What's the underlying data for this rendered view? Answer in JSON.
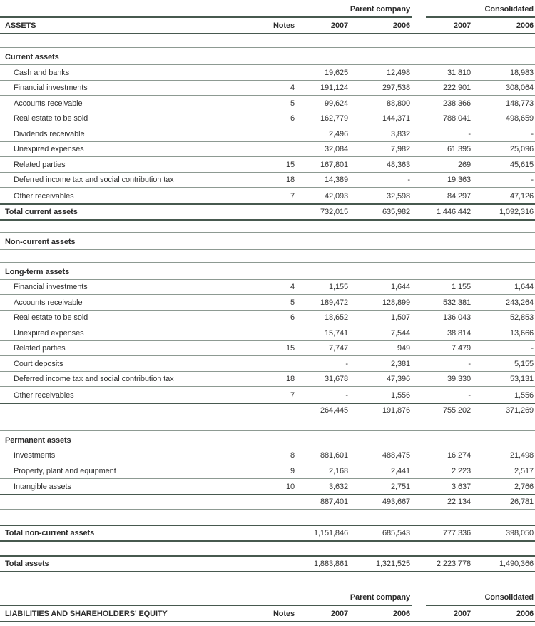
{
  "document": {
    "kind": "balance-sheet",
    "colors": {
      "rule_dark": "#47594f",
      "rule_light": "#8d9a92",
      "text": "#323232"
    }
  },
  "table": {
    "group_headers": {
      "parent": "Parent company",
      "consolidated": "Consolidated"
    },
    "column_headers": {
      "assets": "ASSETS",
      "liabilities": "LIABILITIES AND SHAREHOLDERS' EQUITY",
      "notes": "Notes",
      "y2007": "2007",
      "y2006": "2006"
    },
    "rows": [
      {
        "type": "groups"
      },
      {
        "type": "cols",
        "label_key": "assets"
      },
      {
        "type": "spacer",
        "h": 18
      },
      {
        "type": "section",
        "label": "Current assets"
      },
      {
        "type": "item",
        "label": "Cash and banks",
        "note": "",
        "p2007": "19,625",
        "p2006": "12,498",
        "c2007": "31,810",
        "c2006": "18,983"
      },
      {
        "type": "item",
        "label": "Financial investments",
        "note": "4",
        "p2007": "191,124",
        "p2006": "297,538",
        "c2007": "222,901",
        "c2006": "308,064"
      },
      {
        "type": "item",
        "label": "Accounts receivable",
        "note": "5",
        "p2007": "99,624",
        "p2006": "88,800",
        "c2007": "238,366",
        "c2006": "148,773"
      },
      {
        "type": "item",
        "label": "Real estate to be sold",
        "note": "6",
        "p2007": "162,779",
        "p2006": "144,371",
        "c2007": "788,041",
        "c2006": "498,659"
      },
      {
        "type": "item",
        "label": "Dividends receivable",
        "note": "",
        "p2007": "2,496",
        "p2006": "3,832",
        "c2007": "-",
        "c2006": "-"
      },
      {
        "type": "item",
        "label": "Unexpired expenses",
        "note": "",
        "p2007": "32,084",
        "p2006": "7,982",
        "c2007": "61,395",
        "c2006": "25,096"
      },
      {
        "type": "item",
        "label": "Related parties",
        "note": "15",
        "p2007": "167,801",
        "p2006": "48,363",
        "c2007": "269",
        "c2006": "45,615"
      },
      {
        "type": "item",
        "label": "Deferred income tax and social contribution tax",
        "note": "18",
        "p2007": "14,389",
        "p2006": "-",
        "c2007": "19,363",
        "c2006": "-"
      },
      {
        "type": "item",
        "nb": true,
        "label": "Other receivables",
        "note": "7",
        "p2007": "42,093",
        "p2006": "32,598",
        "c2007": "84,297",
        "c2006": "47,126"
      },
      {
        "type": "total",
        "label": "Total current assets",
        "note": "",
        "p2007": "732,015",
        "p2006": "635,982",
        "c2007": "1,446,442",
        "c2006": "1,092,316"
      },
      {
        "type": "spacer",
        "h": 16
      },
      {
        "type": "section",
        "label": "Non-current assets"
      },
      {
        "type": "spacer",
        "h": 17
      },
      {
        "type": "section",
        "label": "Long-term assets"
      },
      {
        "type": "item",
        "label": "Financial investments",
        "note": "4",
        "p2007": "1,155",
        "p2006": "1,644",
        "c2007": "1,155",
        "c2006": "1,644"
      },
      {
        "type": "item",
        "label": "Accounts receivable",
        "note": "5",
        "p2007": "189,472",
        "p2006": "128,899",
        "c2007": "532,381",
        "c2006": "243,264"
      },
      {
        "type": "item",
        "label": "Real estate to be sold",
        "note": "6",
        "p2007": "18,652",
        "p2006": "1,507",
        "c2007": "136,043",
        "c2006": "52,853"
      },
      {
        "type": "item",
        "label": "Unexpired expenses",
        "note": "",
        "p2007": "15,741",
        "p2006": "7,544",
        "c2007": "38,814",
        "c2006": "13,666"
      },
      {
        "type": "item",
        "label": "Related parties",
        "note": "15",
        "p2007": "7,747",
        "p2006": "949",
        "c2007": "7,479",
        "c2006": "-"
      },
      {
        "type": "item",
        "label": "Court deposits",
        "note": "",
        "p2007": "-",
        "p2006": "2,381",
        "c2007": "-",
        "c2006": "5,155"
      },
      {
        "type": "item",
        "label": "Deferred income tax and social contribution tax",
        "note": "18",
        "p2007": "31,678",
        "p2006": "47,396",
        "c2007": "39,330",
        "c2006": "53,131"
      },
      {
        "type": "item",
        "nb": true,
        "label": "Other receivables",
        "note": "7",
        "p2007": "-",
        "p2006": "1,556",
        "c2007": "-",
        "c2006": "1,556"
      },
      {
        "type": "subtotal",
        "label": "",
        "note": "",
        "p2007": "264,445",
        "p2006": "191,876",
        "c2007": "755,202",
        "c2006": "371,269"
      },
      {
        "type": "spacer",
        "h": 17
      },
      {
        "type": "section",
        "label": "Permanent assets"
      },
      {
        "type": "item",
        "label": "Investments",
        "note": "8",
        "p2007": "881,601",
        "p2006": "488,475",
        "c2007": "16,274",
        "c2006": "21,498"
      },
      {
        "type": "item",
        "label": "Property, plant and equipment",
        "note": "9",
        "p2007": "2,168",
        "p2006": "2,441",
        "c2007": "2,223",
        "c2006": "2,517"
      },
      {
        "type": "item",
        "nb": true,
        "label": "Intangible assets",
        "note": "10",
        "p2007": "3,632",
        "p2006": "2,751",
        "c2007": "3,637",
        "c2006": "2,766"
      },
      {
        "type": "subtotal",
        "label": "",
        "note": "",
        "p2007": "887,401",
        "p2006": "493,667",
        "c2007": "22,134",
        "c2006": "26,781"
      },
      {
        "type": "spacer",
        "h": 21
      },
      {
        "type": "total",
        "label": "Total non-current assets",
        "note": "",
        "p2007": "1,151,846",
        "p2006": "685,543",
        "c2007": "777,336",
        "c2006": "398,050"
      },
      {
        "type": "spacer",
        "h": 19
      },
      {
        "type": "total",
        "label": "Total assets",
        "note": "",
        "p2007": "1,883,861",
        "p2006": "1,321,525",
        "c2007": "2,223,778",
        "c2006": "1,490,366"
      },
      {
        "type": "rule",
        "h": 3
      },
      {
        "type": "spacer",
        "h": 18
      },
      {
        "type": "groups"
      },
      {
        "type": "cols",
        "label_key": "liabilities"
      }
    ]
  }
}
